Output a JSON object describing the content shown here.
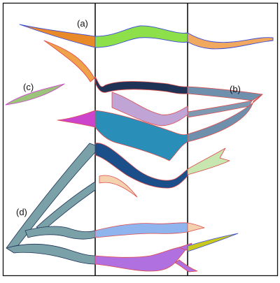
{
  "diagram": {
    "labels": {
      "a": "(a)",
      "b": "(b)",
      "c": "(c)",
      "d": "(d)"
    },
    "colors": {
      "frame": "#111111",
      "outline": "#e04a4a",
      "blue_outline": "#3b4bd8",
      "orange": "#e8892a",
      "light_orange": "#f0a95e",
      "lime_green": "#8ee04a",
      "sage_green": "#9bc47a",
      "pale_green": "#c8e6b0",
      "magenta": "#cc44cc",
      "lavender": "#c0a4d6",
      "purple": "#b070e0",
      "teal": "#2a8fb8",
      "navy": "#1a4f8a",
      "slate_blue": "#6f90ac",
      "grey_teal": "#7aa0a8",
      "light_blue": "#8fb4ee",
      "peach": "#f4d2b0",
      "olive": "#c8c81e",
      "dark_navy": "#1f3357"
    }
  }
}
